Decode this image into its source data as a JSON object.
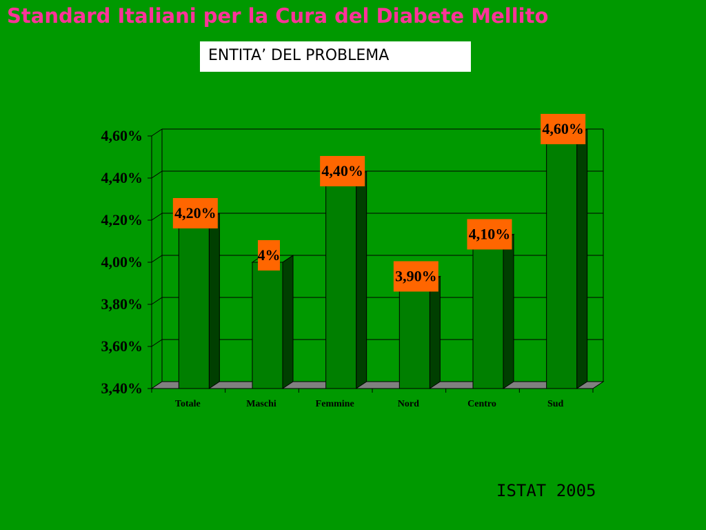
{
  "slide": {
    "title": "Standard Italiani per la Cura del Diabete Mellito",
    "subtitle": "ENTITA’ DEL PROBLEMA",
    "source": "ISTAT 2005"
  },
  "colors": {
    "background": "#009900",
    "title": "#ff3399",
    "bar_front": "#007f00",
    "bar_side": "#003f00",
    "label_box": "#ff6600",
    "floor": "#808080"
  },
  "chart_data": {
    "type": "bar",
    "categories": [
      "Totale",
      "Maschi",
      "Femmine",
      "Nord",
      "Centro",
      "Sud"
    ],
    "values": [
      4.2,
      4.0,
      4.4,
      3.9,
      4.1,
      4.6
    ],
    "data_labels": [
      "4,20%",
      "4%",
      "4,40%",
      "3,90%",
      "4,10%",
      "4,60%"
    ],
    "ylim": [
      3.4,
      4.6
    ],
    "yticks": [
      3.4,
      3.6,
      3.8,
      4.0,
      4.2,
      4.4,
      4.6
    ],
    "ytick_labels": [
      "3,40%",
      "3,60%",
      "3,80%",
      "4,00%",
      "4,20%",
      "4,40%",
      "4,60%"
    ],
    "grid": true,
    "legend": "none",
    "style": "3d-bar"
  }
}
